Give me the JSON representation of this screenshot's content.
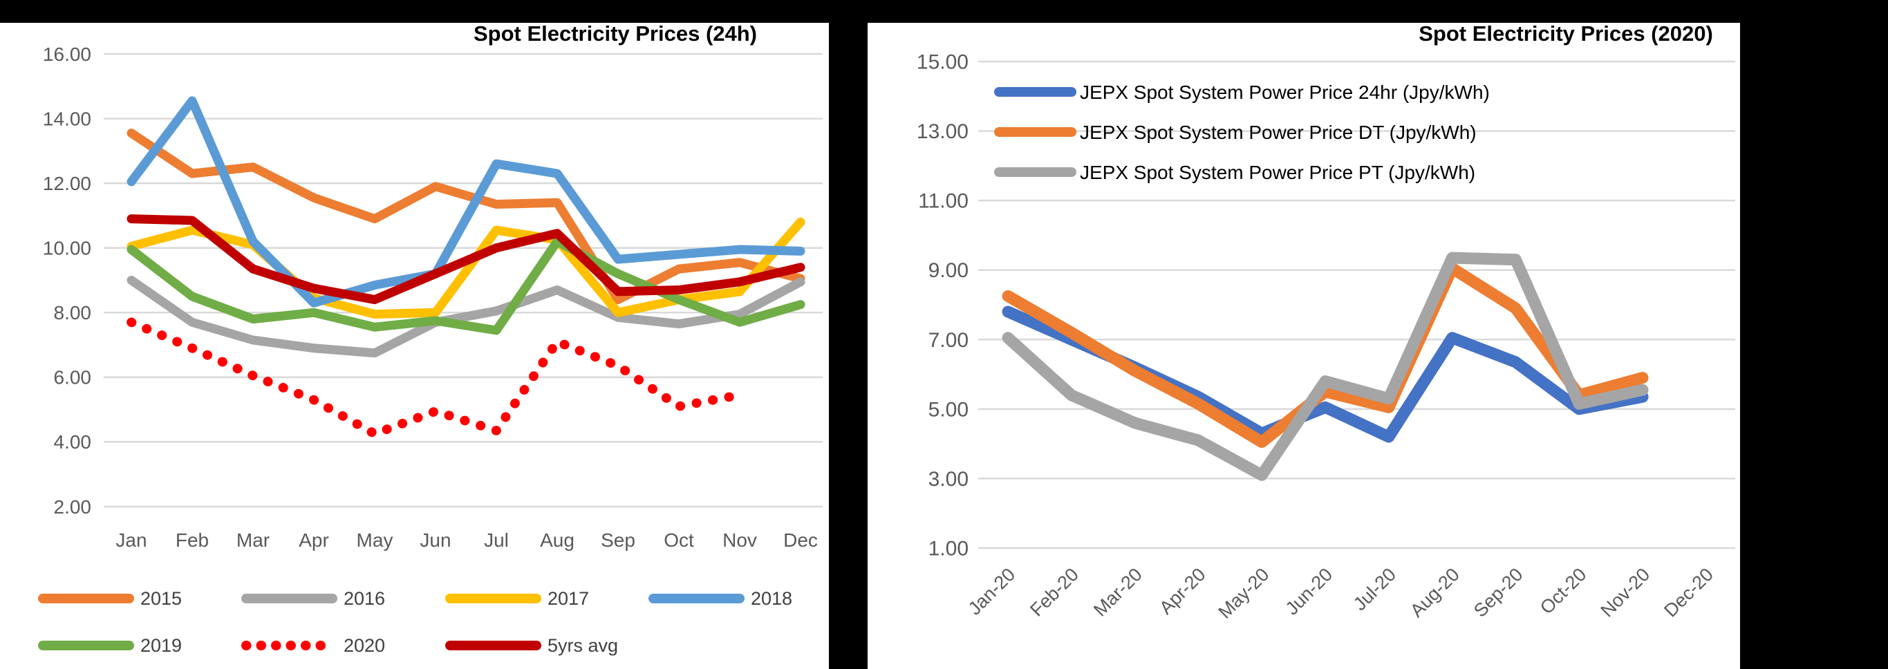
{
  "page": {
    "background_color": "#000000",
    "panel_color": "#ffffff",
    "gridline_color": "#d9d9d9"
  },
  "chart_data": [
    {
      "type": "line",
      "title": "Spot Electricity Prices (24h)",
      "xlabel": "",
      "ylabel": "",
      "ylim": [
        2,
        16
      ],
      "y_tick_step": 2,
      "y_tick_labels": [
        "16.00",
        "14.00",
        "12.00",
        "10.00",
        "8.00",
        "6.00",
        "4.00",
        "2.00"
      ],
      "grid": true,
      "legend_position": "bottom",
      "categories": [
        "Jan",
        "Feb",
        "Mar",
        "Apr",
        "May",
        "Jun",
        "Jul",
        "Aug",
        "Sep",
        "Oct",
        "Nov",
        "Dec"
      ],
      "series": [
        {
          "name": "2015",
          "color": "#ED7D31",
          "dash": "solid",
          "values": [
            13.55,
            12.3,
            12.5,
            11.55,
            10.9,
            11.9,
            11.35,
            11.4,
            8.4,
            9.35,
            9.55,
            9.05
          ]
        },
        {
          "name": "2016",
          "color": "#A5A5A5",
          "dash": "solid",
          "values": [
            9.0,
            7.7,
            7.15,
            6.9,
            6.75,
            7.7,
            8.05,
            8.7,
            7.85,
            7.65,
            7.95,
            8.95
          ]
        },
        {
          "name": "2017",
          "color": "#FFC000",
          "dash": "solid",
          "values": [
            10.05,
            10.55,
            10.1,
            8.45,
            7.95,
            8.0,
            10.55,
            10.25,
            8.0,
            8.4,
            8.65,
            10.8
          ]
        },
        {
          "name": "2018",
          "color": "#5B9BD5",
          "dash": "solid",
          "values": [
            12.05,
            14.55,
            10.2,
            8.3,
            8.85,
            9.2,
            12.6,
            12.3,
            9.65,
            9.8,
            9.95,
            9.9
          ]
        },
        {
          "name": "2019",
          "color": "#70AD47",
          "dash": "solid",
          "values": [
            9.95,
            8.5,
            7.8,
            8.0,
            7.55,
            7.75,
            7.45,
            10.2,
            9.2,
            8.4,
            7.7,
            8.25
          ]
        },
        {
          "name": "2020",
          "color": "#FF0000",
          "dash": "dotted",
          "values": [
            7.7,
            6.9,
            6.05,
            5.3,
            4.25,
            4.95,
            4.35,
            7.1,
            6.35,
            5.1,
            5.45,
            null
          ]
        },
        {
          "name": "5yrs avg",
          "color": "#C00000",
          "dash": "solid",
          "values": [
            10.9,
            10.85,
            9.35,
            8.75,
            8.4,
            9.2,
            10.0,
            10.45,
            8.65,
            8.7,
            8.95,
            9.4
          ]
        }
      ],
      "legend_rows": [
        [
          "2015",
          "2016",
          "2017",
          "2018"
        ],
        [
          "2019",
          "2020",
          "5yrs avg"
        ]
      ]
    },
    {
      "type": "line",
      "title": "Spot Electricity Prices (2020)",
      "xlabel": "",
      "ylabel": "",
      "ylim": [
        1,
        15
      ],
      "y_tick_step": 2,
      "y_tick_labels": [
        "15.00",
        "13.00",
        "11.00",
        "9.00",
        "7.00",
        "5.00",
        "3.00",
        "1.00"
      ],
      "grid": true,
      "legend_position": "inside-top-left",
      "categories": [
        "Jan-20",
        "Feb-20",
        "Mar-20",
        "Apr-20",
        "May-20",
        "Jun-20",
        "Jul-20",
        "Aug-20",
        "Sep-20",
        "Oct-20",
        "Nov-20",
        "Dec-20"
      ],
      "series": [
        {
          "name": "JEPX Spot System Power Price 24hr (Jpy/kWh)",
          "color": "#4472C4",
          "dash": "solid",
          "values": [
            7.8,
            7.0,
            6.2,
            5.35,
            4.3,
            5.05,
            4.2,
            7.05,
            6.35,
            5.0,
            5.35,
            null
          ]
        },
        {
          "name": "JEPX Spot System Power Price DT (Jpy/kWh)",
          "color": "#ED7D31",
          "dash": "solid",
          "values": [
            8.25,
            7.2,
            6.1,
            5.15,
            4.05,
            5.5,
            5.05,
            9.05,
            7.9,
            5.4,
            5.9,
            null
          ]
        },
        {
          "name": "JEPX Spot System Power Price PT (Jpy/kWh)",
          "color": "#A5A5A5",
          "dash": "solid",
          "values": [
            7.05,
            5.4,
            4.6,
            4.1,
            3.1,
            5.8,
            5.3,
            9.35,
            9.3,
            5.15,
            5.55,
            null
          ]
        }
      ]
    }
  ]
}
